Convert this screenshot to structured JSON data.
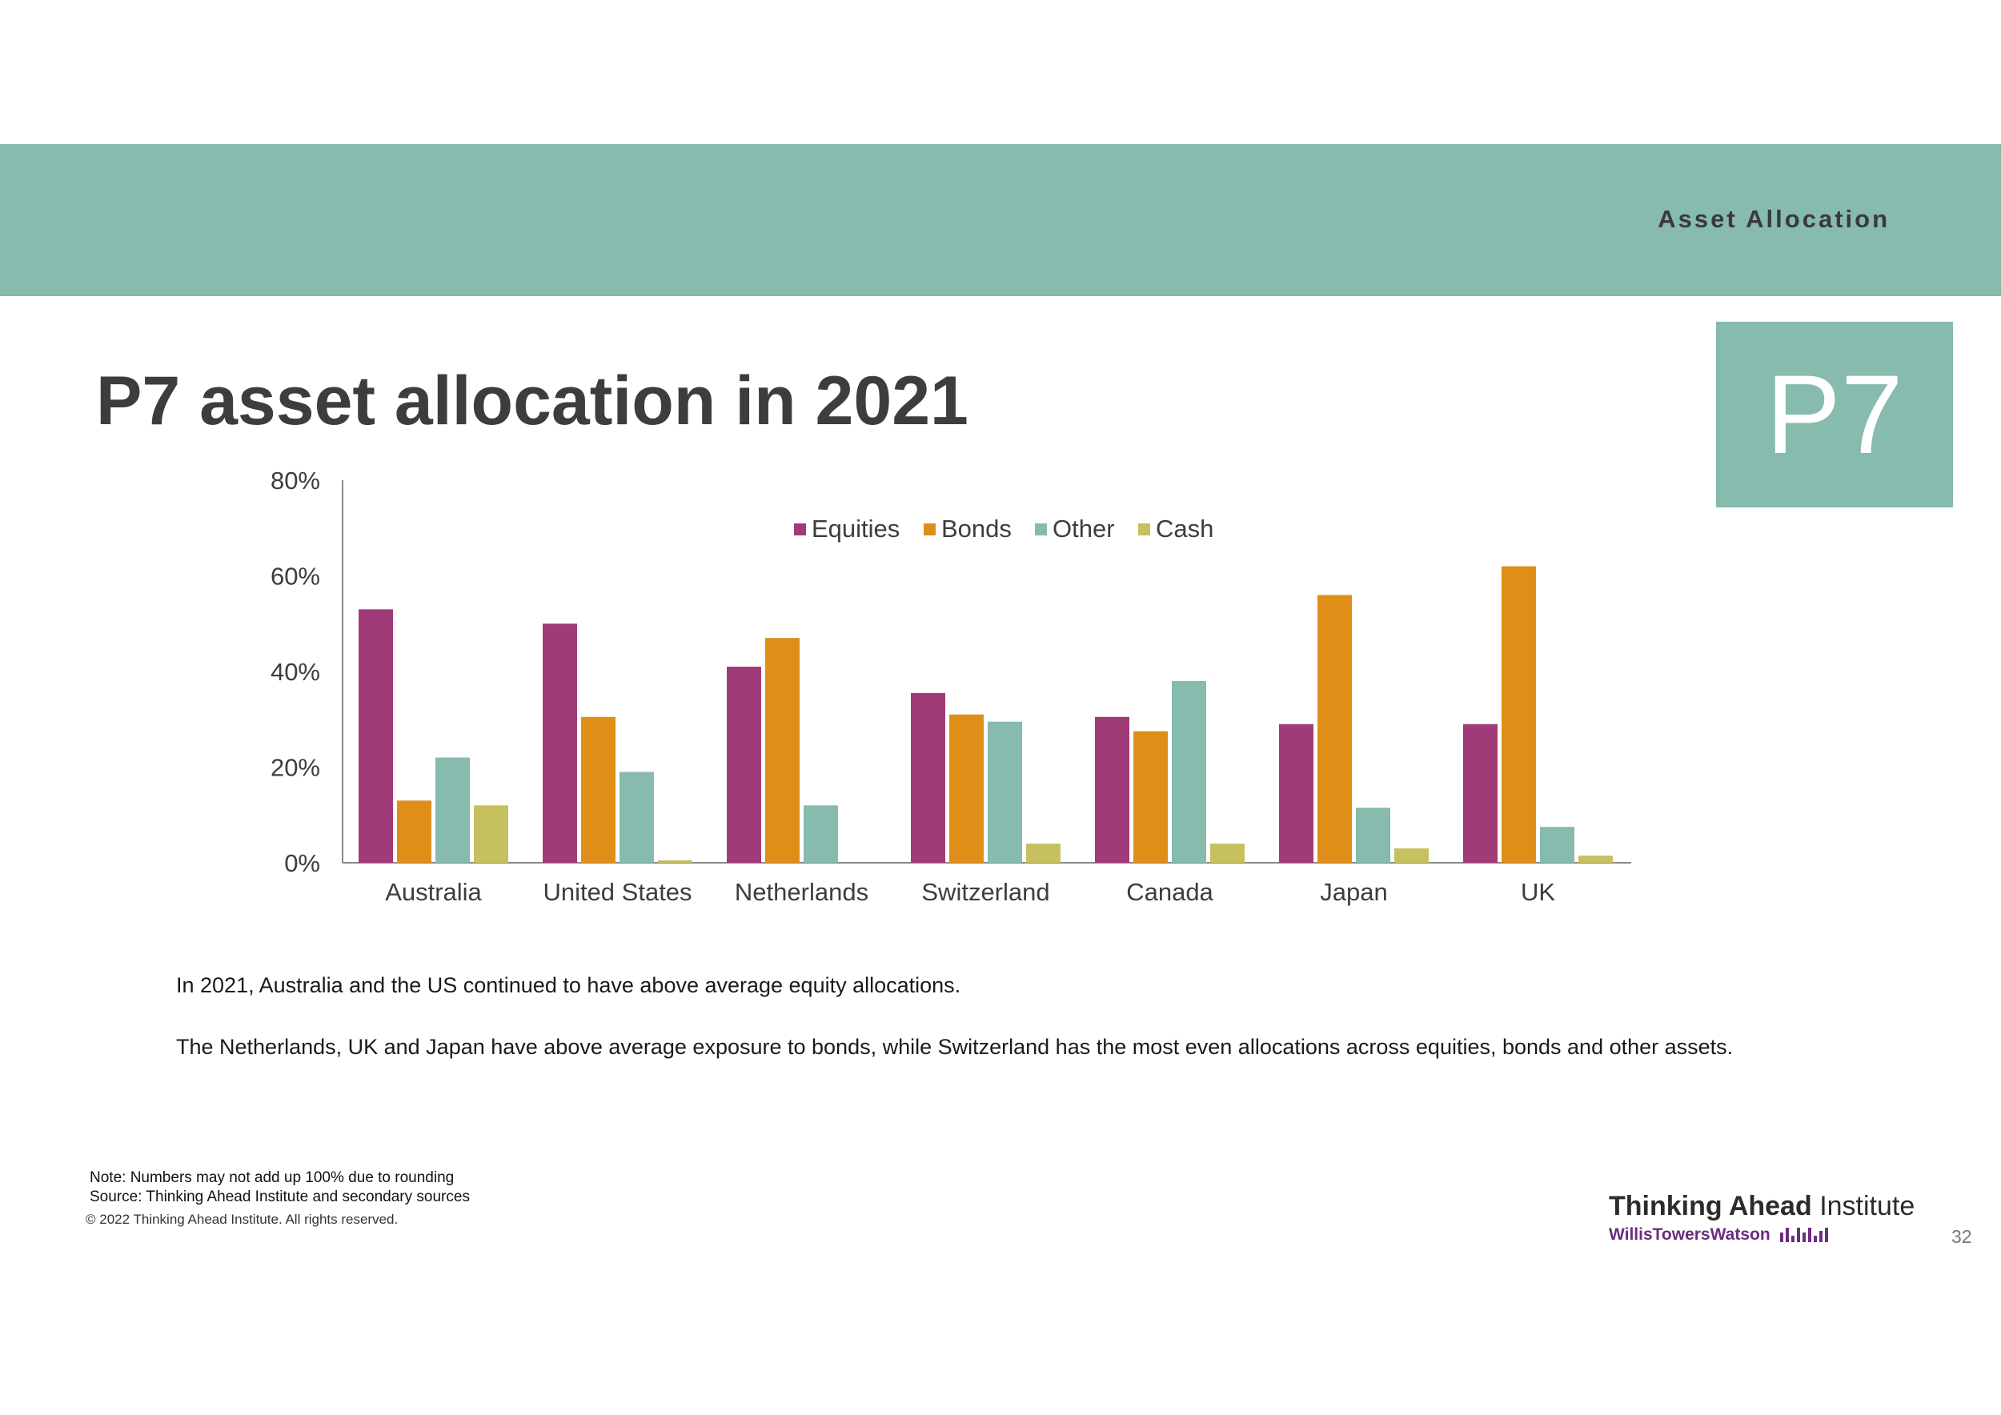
{
  "header": {
    "section_label": "Asset Allocation"
  },
  "title": "P7 asset allocation in 2021",
  "code_badge": "P7",
  "colors": {
    "banner": "#86bbad",
    "equities": "#a13b78",
    "bonds": "#df8f17",
    "other": "#86bbad",
    "cash": "#c6c15e"
  },
  "chart_data": {
    "type": "bar",
    "title": "",
    "xlabel": "",
    "ylabel": "",
    "ylim": [
      0,
      80
    ],
    "yticks": [
      "0%",
      "20%",
      "40%",
      "60%",
      "80%"
    ],
    "grid": false,
    "legend_position": "top-center",
    "categories": [
      "Australia",
      "United States",
      "Netherlands",
      "Switzerland",
      "Canada",
      "Japan",
      "UK"
    ],
    "series": [
      {
        "name": "Equities",
        "color": "#a13b78",
        "values": [
          53,
          50,
          41,
          35.5,
          30.5,
          29,
          29
        ]
      },
      {
        "name": "Bonds",
        "color": "#df8f17",
        "values": [
          13,
          30.5,
          47,
          31,
          27.5,
          56,
          62
        ]
      },
      {
        "name": "Other",
        "color": "#86bbad",
        "values": [
          22,
          19,
          12,
          29.5,
          38,
          11.5,
          7.5
        ]
      },
      {
        "name": "Cash",
        "color": "#c6c15e",
        "values": [
          12,
          0.5,
          0,
          4,
          4,
          3,
          1.5
        ]
      }
    ]
  },
  "body": {
    "paragraph1": "In 2021, Australia and the US continued to have above average equity allocations.",
    "paragraph2": "The Netherlands, UK and Japan have above average exposure to bonds, while Switzerland has the most even allocations across equities, bonds and other assets."
  },
  "footer": {
    "note": "Note: Numbers may not add up 100% due to rounding",
    "source": "Source: Thinking Ahead Institute and secondary sources",
    "copyright": "© 2022 Thinking Ahead Institute. All rights reserved.",
    "logo_bold": "Thinking Ahead",
    "logo_rest": " Institute",
    "logo_sub": "WillisTowersWatson",
    "page_number": "32"
  }
}
